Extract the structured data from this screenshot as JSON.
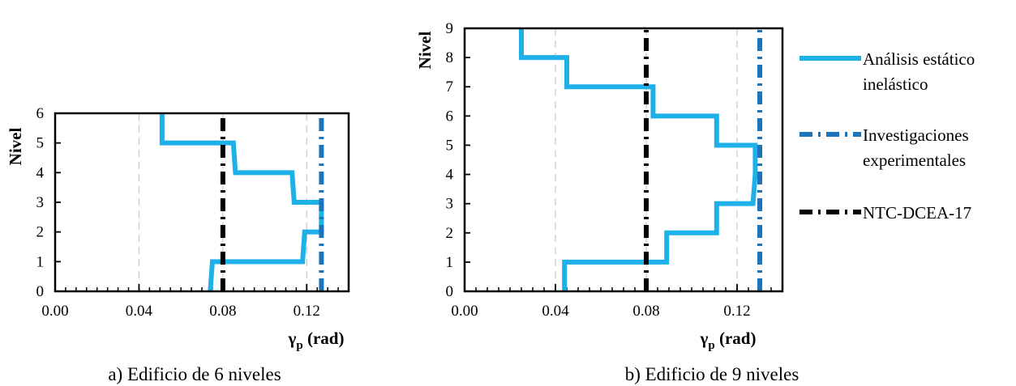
{
  "chart_data": [
    {
      "type": "line",
      "caption": "a) Edificio de 6 niveles",
      "xlabel": "γ",
      "xlabel_sub": "p",
      "xlabel_unit": " (rad)",
      "ylabel": "Nivel",
      "xlim": [
        0,
        0.14
      ],
      "ylim": [
        0,
        6
      ],
      "x_ticks": [
        "0.00",
        "0.04",
        "0.08",
        "0.12"
      ],
      "x_tick_values": [
        0,
        0.04,
        0.08,
        0.12
      ],
      "y_ticks": [
        "0",
        "1",
        "2",
        "3",
        "4",
        "5",
        "6"
      ],
      "y_tick_values": [
        0,
        1,
        2,
        3,
        4,
        5,
        6
      ],
      "grid": "vertical dashed",
      "series": [
        {
          "name": "Análisis estático inelástico",
          "style": "solid",
          "color": "#1EB0E8",
          "points": [
            [
              0.074,
              0
            ],
            [
              0.075,
              1
            ],
            [
              0.118,
              1
            ],
            [
              0.119,
              2
            ],
            [
              0.127,
              2
            ],
            [
              0.127,
              3
            ],
            [
              0.114,
              3
            ],
            [
              0.113,
              4
            ],
            [
              0.086,
              4
            ],
            [
              0.085,
              5
            ],
            [
              0.051,
              5
            ],
            [
              0.051,
              6
            ]
          ]
        },
        {
          "name": "Investigaciones experimentales",
          "style": "dash-dot",
          "color": "#1C75BC",
          "points": [
            [
              0.127,
              0
            ],
            [
              0.127,
              6
            ]
          ]
        },
        {
          "name": "NTC-DCEA-17",
          "style": "dash-dot",
          "color": "#000000",
          "points": [
            [
              0.08,
              0
            ],
            [
              0.08,
              6
            ]
          ]
        }
      ]
    },
    {
      "type": "line",
      "caption": "b) Edificio de 9 niveles",
      "xlabel": "γ",
      "xlabel_sub": "p",
      "xlabel_unit": " (rad)",
      "ylabel": "Nivel",
      "xlim": [
        0,
        0.14
      ],
      "ylim": [
        0,
        9
      ],
      "x_ticks": [
        "0.00",
        "0.04",
        "0.08",
        "0.12"
      ],
      "x_tick_values": [
        0,
        0.04,
        0.08,
        0.12
      ],
      "y_ticks": [
        "0",
        "1",
        "2",
        "3",
        "4",
        "5",
        "6",
        "7",
        "8",
        "9"
      ],
      "y_tick_values": [
        0,
        1,
        2,
        3,
        4,
        5,
        6,
        7,
        8,
        9
      ],
      "grid": "vertical dashed",
      "series": [
        {
          "name": "Análisis estático inelástico",
          "style": "solid",
          "color": "#1EB0E8",
          "points": [
            [
              0.044,
              0
            ],
            [
              0.044,
              1
            ],
            [
              0.089,
              1
            ],
            [
              0.089,
              2
            ],
            [
              0.111,
              2
            ],
            [
              0.111,
              3
            ],
            [
              0.127,
              3
            ],
            [
              0.128,
              4
            ],
            [
              0.128,
              5
            ],
            [
              0.111,
              5
            ],
            [
              0.111,
              6
            ],
            [
              0.083,
              6
            ],
            [
              0.083,
              7
            ],
            [
              0.045,
              7
            ],
            [
              0.045,
              8
            ],
            [
              0.025,
              8
            ],
            [
              0.025,
              9
            ]
          ]
        },
        {
          "name": "Investigaciones experimentales",
          "style": "dash-dot",
          "color": "#1C75BC",
          "points": [
            [
              0.13,
              0
            ],
            [
              0.13,
              9
            ]
          ]
        },
        {
          "name": "NTC-DCEA-17",
          "style": "dash-dot",
          "color": "#000000",
          "points": [
            [
              0.08,
              0
            ],
            [
              0.08,
              9
            ]
          ]
        }
      ]
    }
  ],
  "legend": {
    "placement": "right",
    "items": [
      {
        "line1": "Análisis estático",
        "line2": "inelástico",
        "style": "solid",
        "color": "#1EB0E8"
      },
      {
        "line1": "Investigaciones",
        "line2": "experimentales",
        "style": "dash-dot",
        "color": "#1C75BC"
      },
      {
        "line1": "NTC-DCEA-17",
        "line2": "",
        "style": "dash-dot",
        "color": "#000000"
      }
    ]
  }
}
